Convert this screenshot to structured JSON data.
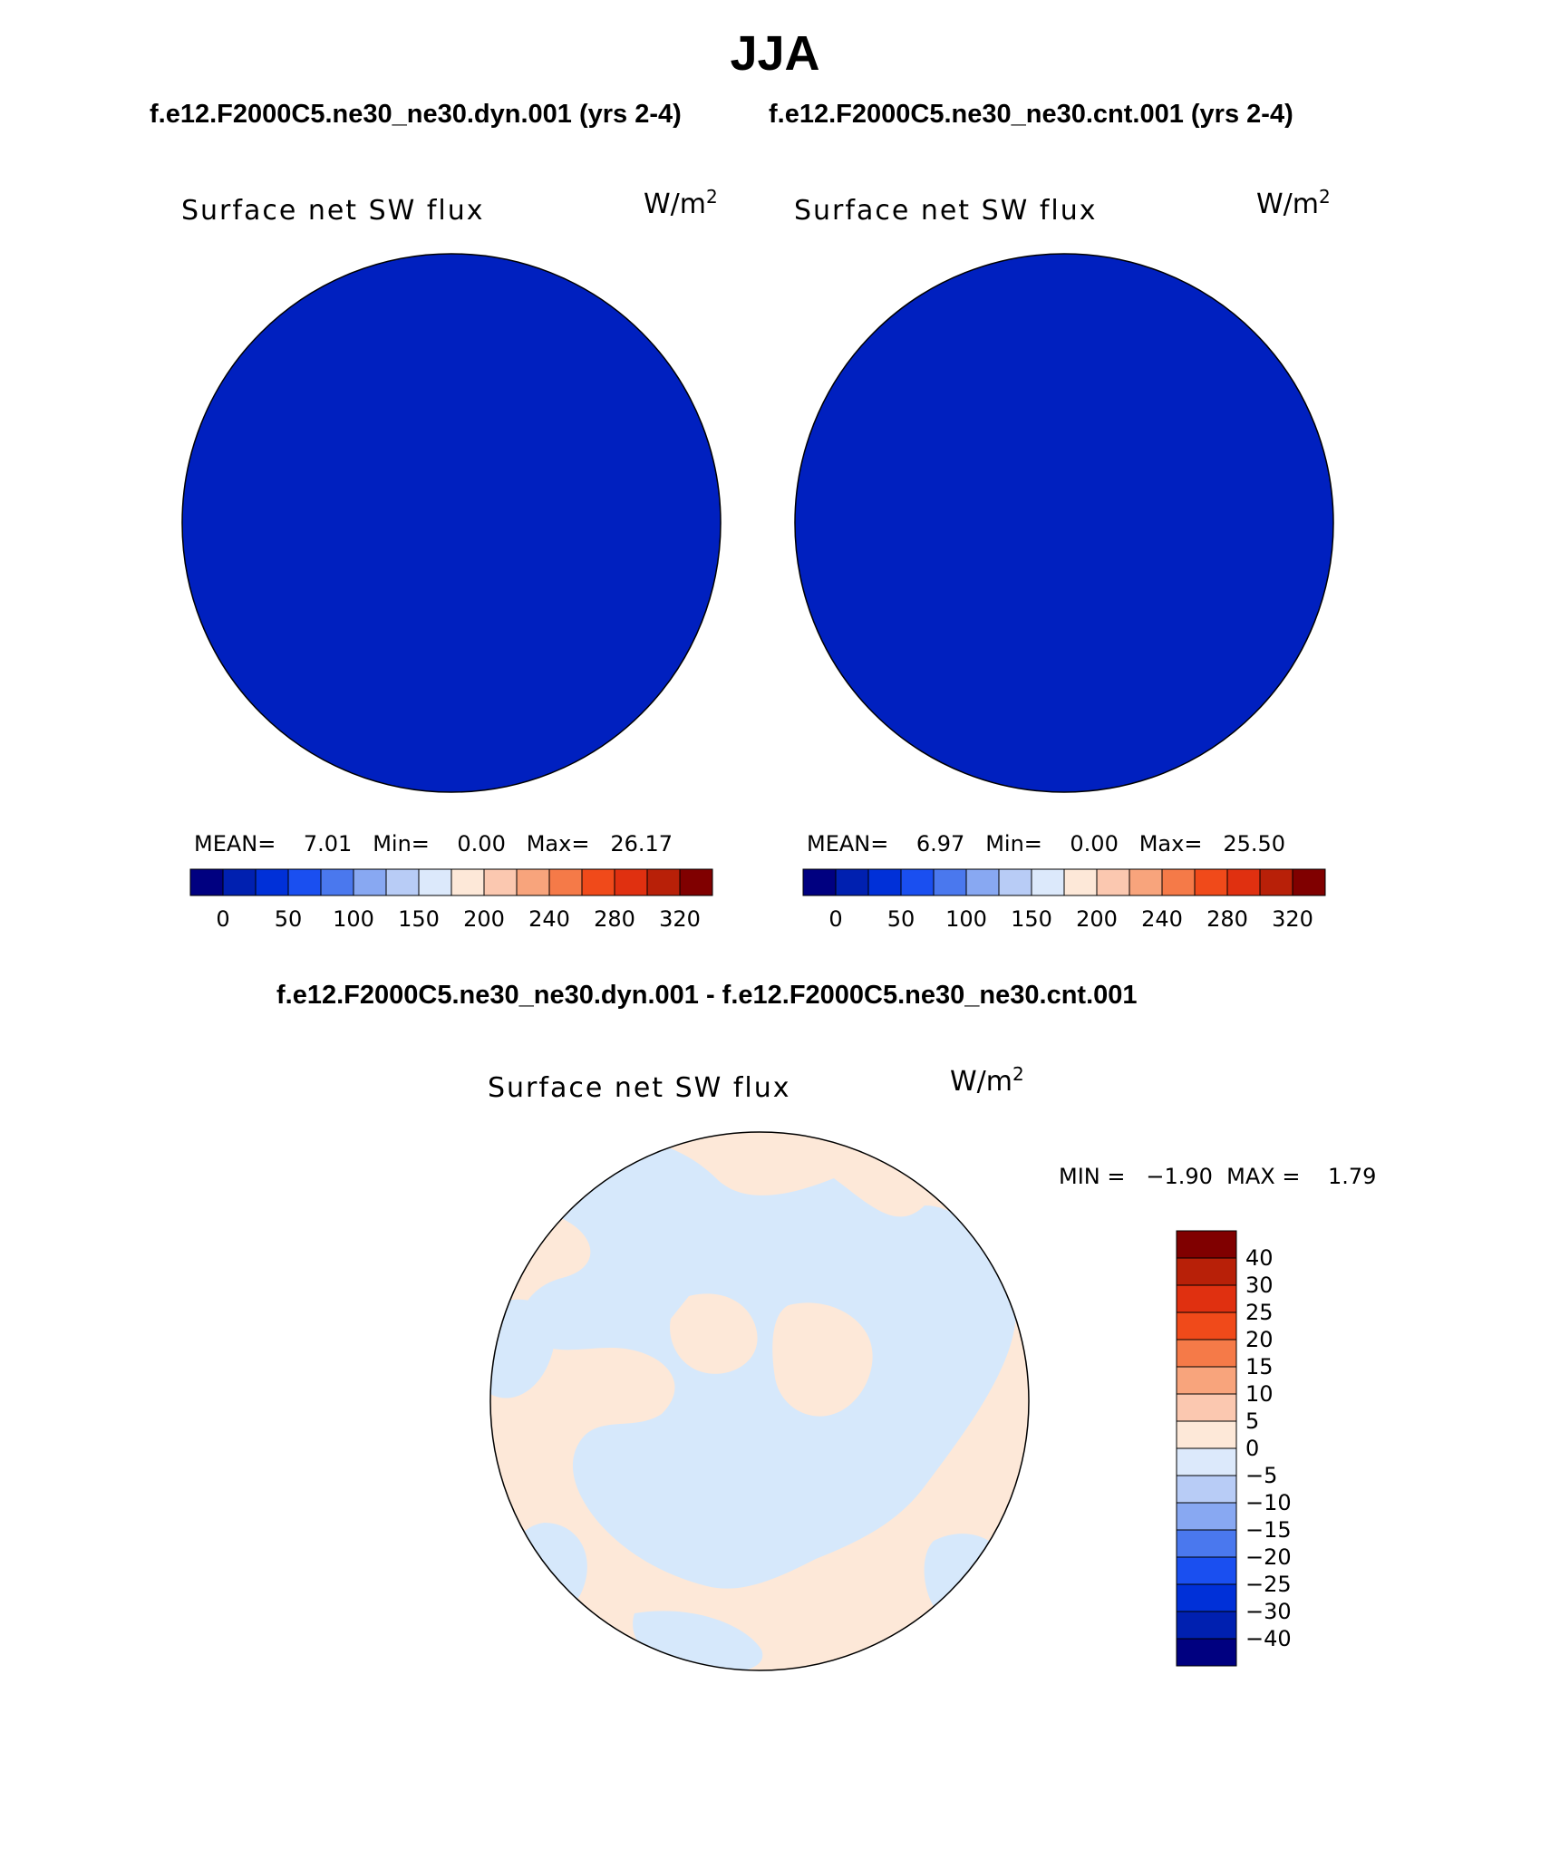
{
  "title": "JJA",
  "cases": {
    "left": "f.e12.F2000C5.ne30_ne30.dyn.001 (yrs 2-4)",
    "right": "f.e12.F2000C5.ne30_ne30.cnt.001 (yrs 2-4)",
    "diff": "f.e12.F2000C5.ne30_ne30.dyn.001 - f.e12.F2000C5.ne30_ne30.cnt.001"
  },
  "panels": [
    {
      "field": "Surface net SW flux",
      "units_base": "W/m",
      "units_exp": "2",
      "stats": "MEAN=    7.01   Min=    0.00   Max=   26.17",
      "fill_color": "#0020bf"
    },
    {
      "field": "Surface net SW flux",
      "units_base": "W/m",
      "units_exp": "2",
      "stats": "MEAN=    6.97   Min=    0.00   Max=   25.50",
      "fill_color": "#0020bf"
    }
  ],
  "diff_panel": {
    "field": "Surface net SW flux",
    "units_base": "W/m",
    "units_exp": "2",
    "stats": "MIN =   −1.90  MAX =    1.79",
    "colors": {
      "positive_small": "#fde8d8",
      "negative_small": "#d6e8fb"
    }
  },
  "colorbar_abs": {
    "colors": [
      "#000080",
      "#0020b0",
      "#0030d8",
      "#1a4ff0",
      "#4a78ee",
      "#88a8f2",
      "#b8ccf6",
      "#dce9fb",
      "#fde8d8",
      "#fbc8b0",
      "#f8a47c",
      "#f57a48",
      "#f04a1a",
      "#e03010",
      "#b82008",
      "#800000"
    ],
    "tick_labels": [
      "0",
      "50",
      "100",
      "150",
      "200",
      "240",
      "280",
      "320"
    ]
  },
  "colorbar_diff": {
    "colors": [
      "#800000",
      "#b82008",
      "#e03010",
      "#f04a1a",
      "#f57a48",
      "#f8a47c",
      "#fbc8b0",
      "#fde8d8",
      "#dce9fb",
      "#b8ccf6",
      "#88a8f2",
      "#4a78ee",
      "#1a4ff0",
      "#0030d8",
      "#0020b0",
      "#000080"
    ],
    "tick_labels": [
      "40",
      "30",
      "25",
      "20",
      "15",
      "10",
      "5",
      "0",
      "−5",
      "−10",
      "−15",
      "−20",
      "−25",
      "−30",
      "−40"
    ]
  }
}
